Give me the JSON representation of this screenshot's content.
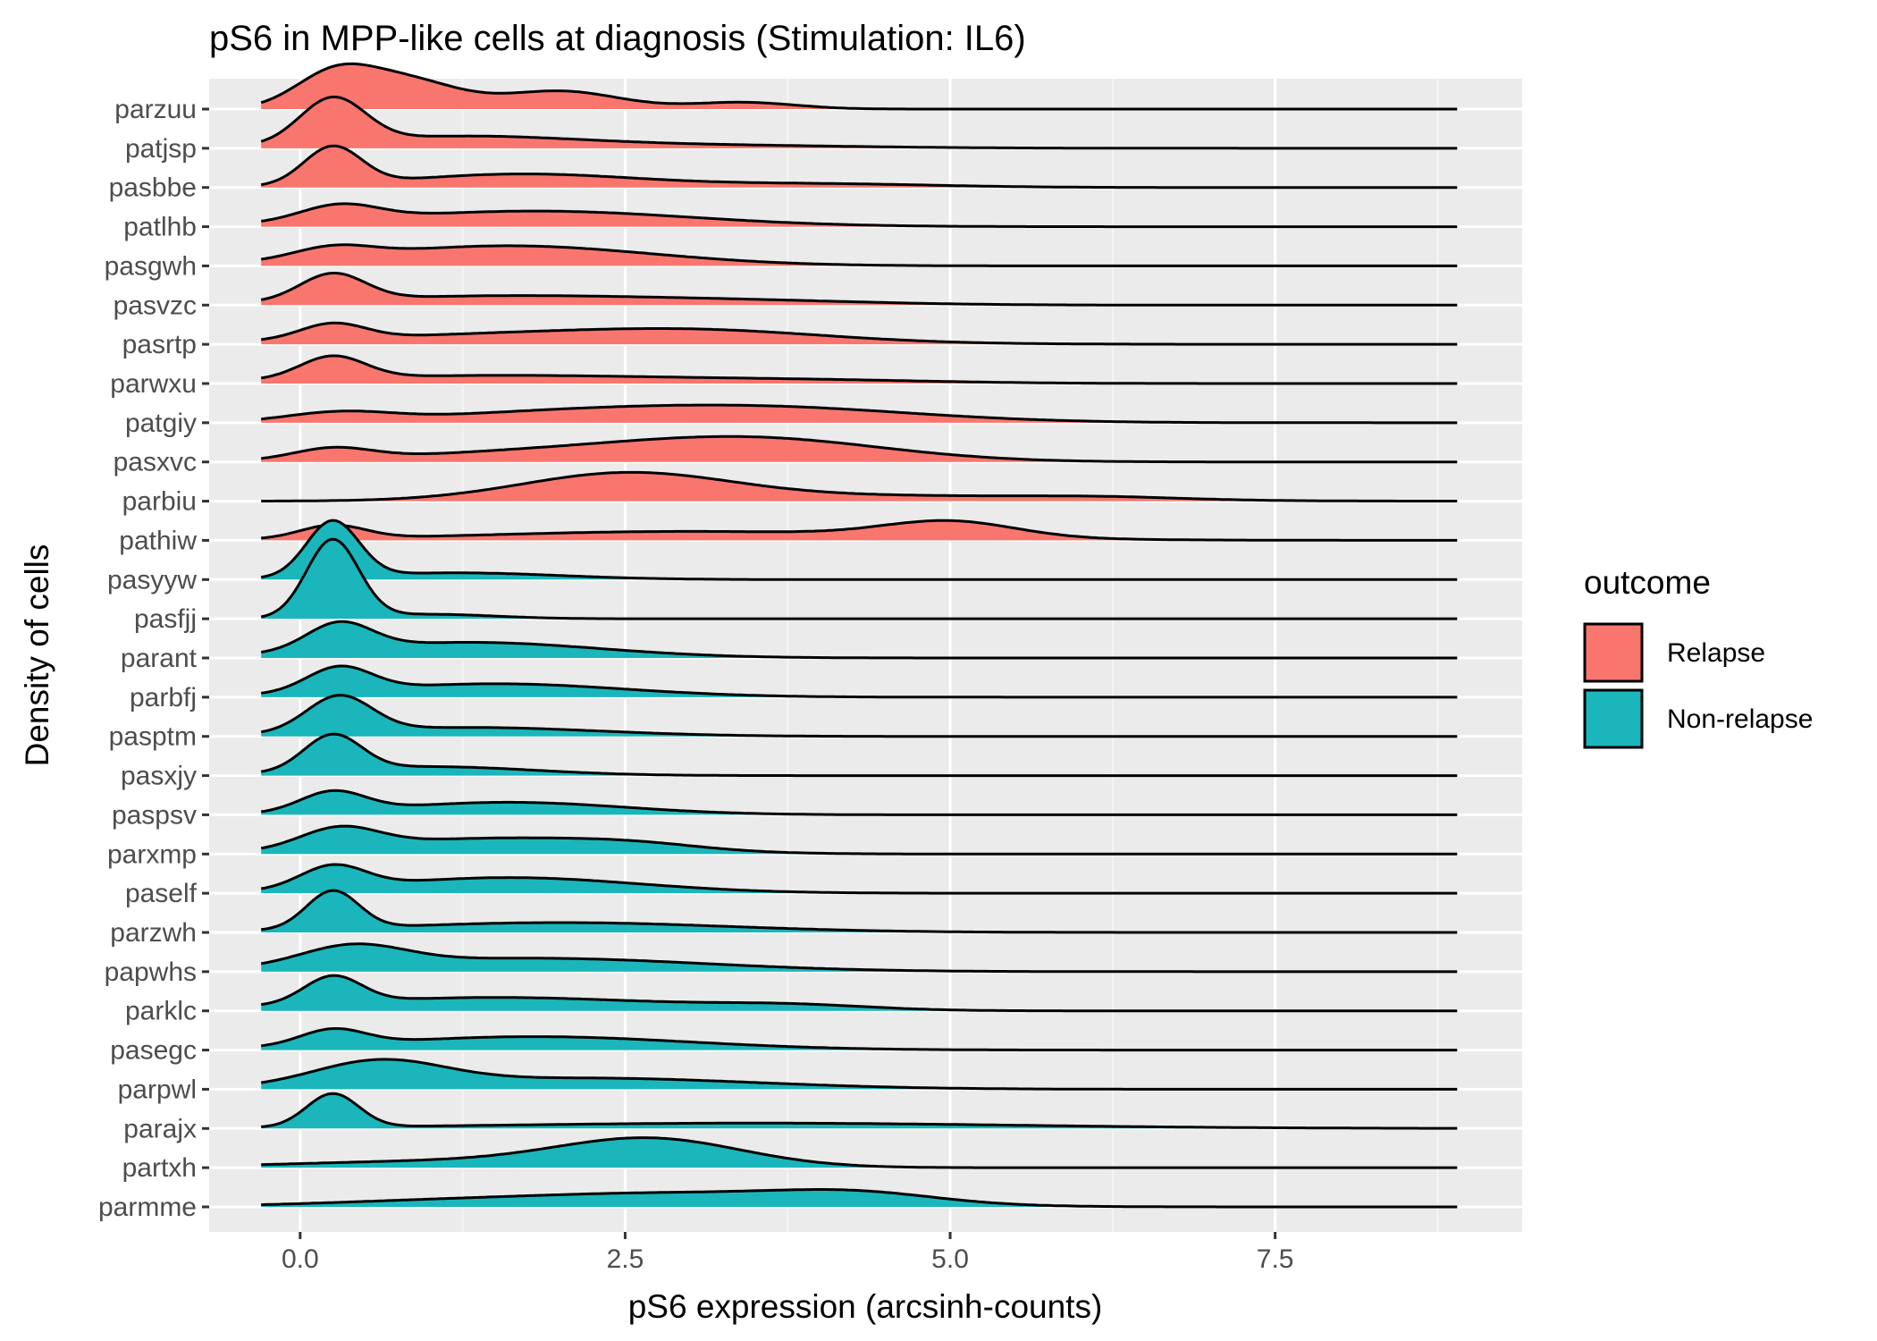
{
  "chart_data": {
    "type": "ridgeline",
    "title": "pS6 in MPP-like cells at diagnosis (Stimulation: IL6)",
    "xlabel": "pS6 expression (arcsinh-counts)",
    "ylabel": "Density of cells",
    "xlim": [
      -0.7,
      9.4
    ],
    "x_ticks": [
      0,
      2.5,
      5,
      7.5
    ],
    "x_tick_labels": [
      "0.0",
      "2.5",
      "5.0",
      "7.5"
    ],
    "grid": true,
    "legend": {
      "title": "outcome",
      "position": "right",
      "entries": [
        {
          "label": "Relapse",
          "color": "#F8766D"
        },
        {
          "label": "Non-relapse",
          "color": "#1AB6BB"
        }
      ]
    },
    "x_range": [
      -0.3,
      8.9
    ],
    "series": [
      {
        "name": "parzuu",
        "outcome": "Relapse",
        "peaks": [
          [
            0.25,
            0.3,
            0.7
          ],
          [
            0.8,
            0.4,
            0.65
          ],
          [
            2.0,
            0.45,
            0.4
          ],
          [
            3.4,
            0.4,
            0.15
          ]
        ]
      },
      {
        "name": "patjsp",
        "outcome": "Relapse",
        "peaks": [
          [
            0.25,
            0.25,
            1.0
          ],
          [
            1.2,
            0.9,
            0.25
          ],
          [
            3.0,
            1.2,
            0.07
          ]
        ]
      },
      {
        "name": "pasbbe",
        "outcome": "Relapse",
        "peaks": [
          [
            0.25,
            0.22,
            0.85
          ],
          [
            1.7,
            0.9,
            0.3
          ],
          [
            4.0,
            0.9,
            0.08
          ]
        ]
      },
      {
        "name": "patlhb",
        "outcome": "Relapse",
        "peaks": [
          [
            0.3,
            0.3,
            0.35
          ],
          [
            1.8,
            1.2,
            0.35
          ]
        ]
      },
      {
        "name": "pasgwh",
        "outcome": "Relapse",
        "peaks": [
          [
            0.25,
            0.3,
            0.25
          ],
          [
            1.6,
            1.1,
            0.45
          ]
        ]
      },
      {
        "name": "pasvzc",
        "outcome": "Relapse",
        "peaks": [
          [
            0.25,
            0.25,
            0.6
          ],
          [
            1.5,
            1.2,
            0.2
          ],
          [
            3.5,
            1.0,
            0.08
          ]
        ]
      },
      {
        "name": "pasrtp",
        "outcome": "Relapse",
        "peaks": [
          [
            0.25,
            0.25,
            0.35
          ],
          [
            2.0,
            1.5,
            0.25
          ],
          [
            3.2,
            0.9,
            0.15
          ]
        ]
      },
      {
        "name": "parwxu",
        "outcome": "Relapse",
        "peaks": [
          [
            0.25,
            0.25,
            0.5
          ],
          [
            1.5,
            1.4,
            0.18
          ],
          [
            4.0,
            1.0,
            0.06
          ]
        ]
      },
      {
        "name": "patgiy",
        "outcome": "Relapse",
        "peaks": [
          [
            0.3,
            0.4,
            0.2
          ],
          [
            3.5,
            1.2,
            0.35
          ],
          [
            1.8,
            1.0,
            0.15
          ]
        ]
      },
      {
        "name": "pasxvc",
        "outcome": "Relapse",
        "peaks": [
          [
            0.25,
            0.3,
            0.25
          ],
          [
            3.5,
            1.0,
            0.5
          ],
          [
            1.8,
            1.1,
            0.2
          ]
        ]
      },
      {
        "name": "parbiu",
        "outcome": "Relapse",
        "peaks": [
          [
            2.5,
            0.8,
            0.6
          ],
          [
            4.5,
            1.4,
            0.12
          ],
          [
            6.2,
            0.6,
            0.05
          ]
        ]
      },
      {
        "name": "pathiw",
        "outcome": "Relapse",
        "peaks": [
          [
            0.25,
            0.25,
            0.3
          ],
          [
            5.0,
            0.5,
            0.35
          ],
          [
            3.0,
            1.6,
            0.2
          ]
        ]
      },
      {
        "name": "pasyyw",
        "outcome": "Non-relapse",
        "peaks": [
          [
            0.25,
            0.2,
            1.25
          ],
          [
            1.2,
            0.8,
            0.15
          ]
        ]
      },
      {
        "name": "pasfjj",
        "outcome": "Non-relapse",
        "peaks": [
          [
            0.25,
            0.2,
            1.75
          ],
          [
            1.0,
            0.5,
            0.1
          ]
        ]
      },
      {
        "name": "parant",
        "outcome": "Non-relapse",
        "peaks": [
          [
            0.3,
            0.25,
            0.6
          ],
          [
            1.3,
            1.0,
            0.35
          ]
        ]
      },
      {
        "name": "parbfj",
        "outcome": "Non-relapse",
        "peaks": [
          [
            0.3,
            0.25,
            0.55
          ],
          [
            1.5,
            1.0,
            0.3
          ]
        ]
      },
      {
        "name": "pasptm",
        "outcome": "Non-relapse",
        "peaks": [
          [
            0.3,
            0.25,
            0.8
          ],
          [
            1.3,
            1.0,
            0.2
          ]
        ]
      },
      {
        "name": "pasxjy",
        "outcome": "Non-relapse",
        "peaks": [
          [
            0.25,
            0.22,
            0.8
          ],
          [
            1.0,
            0.8,
            0.2
          ]
        ]
      },
      {
        "name": "paspsv",
        "outcome": "Non-relapse",
        "peaks": [
          [
            0.25,
            0.25,
            0.45
          ],
          [
            1.6,
            0.9,
            0.28
          ]
        ]
      },
      {
        "name": "parxmp",
        "outcome": "Non-relapse",
        "peaks": [
          [
            0.3,
            0.3,
            0.45
          ],
          [
            1.5,
            1.0,
            0.35
          ],
          [
            2.6,
            0.5,
            0.1
          ]
        ]
      },
      {
        "name": "paself",
        "outcome": "Non-relapse",
        "peaks": [
          [
            0.25,
            0.25,
            0.5
          ],
          [
            1.6,
            1.0,
            0.35
          ]
        ]
      },
      {
        "name": "parzwh",
        "outcome": "Non-relapse",
        "peaks": [
          [
            0.25,
            0.2,
            0.85
          ],
          [
            2.0,
            1.3,
            0.22
          ]
        ]
      },
      {
        "name": "papwhs",
        "outcome": "Non-relapse",
        "peaks": [
          [
            0.4,
            0.4,
            0.45
          ],
          [
            1.8,
            1.3,
            0.3
          ]
        ]
      },
      {
        "name": "parklc",
        "outcome": "Non-relapse",
        "peaks": [
          [
            0.25,
            0.22,
            0.6
          ],
          [
            1.5,
            1.3,
            0.3
          ],
          [
            3.8,
            0.6,
            0.1
          ]
        ]
      },
      {
        "name": "pasegc",
        "outcome": "Non-relapse",
        "peaks": [
          [
            0.25,
            0.25,
            0.35
          ],
          [
            1.8,
            1.2,
            0.3
          ]
        ]
      },
      {
        "name": "parpwl",
        "outcome": "Non-relapse",
        "peaks": [
          [
            0.6,
            0.5,
            0.55
          ],
          [
            2.2,
            1.3,
            0.25
          ]
        ]
      },
      {
        "name": "parajx",
        "outcome": "Non-relapse",
        "peaks": [
          [
            0.25,
            0.2,
            0.75
          ],
          [
            3.5,
            2.0,
            0.12
          ]
        ]
      },
      {
        "name": "partxh",
        "outcome": "Non-relapse",
        "peaks": [
          [
            2.7,
            0.7,
            0.6
          ],
          [
            1.2,
            1.2,
            0.15
          ]
        ]
      },
      {
        "name": "parmme",
        "outcome": "Non-relapse",
        "peaks": [
          [
            3.0,
            1.2,
            0.3
          ],
          [
            4.3,
            0.6,
            0.2
          ],
          [
            1.0,
            1.0,
            0.1
          ]
        ]
      }
    ]
  }
}
